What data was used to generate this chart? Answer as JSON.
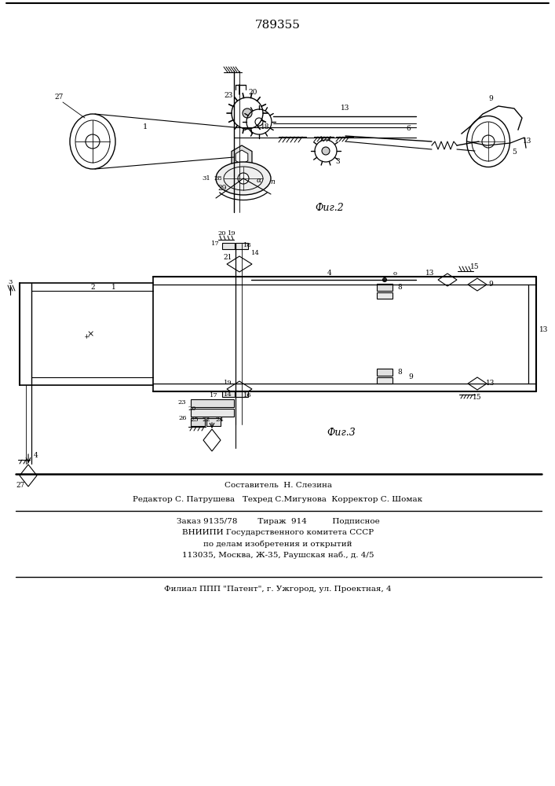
{
  "patent_number": "789355",
  "fig2_label": "Фиг.2",
  "fig3_label": "Фиг.3",
  "footer_line1": "Составитель  Н. Слезина",
  "footer_line2": "Редактор С. Патрушева   Техред С.Мигунова  Корректор С. Шомак",
  "footer_line3": "Заказ 9135/78        Тираж  914          Подписное",
  "footer_line4": "ВНИИПИ Государственного комитета СССР",
  "footer_line5": "по делам изобретения и открытий",
  "footer_line6": "113035, Москва, Ж-35, Раушская наб., д. 4/5",
  "footer_line7": "Филиал ППП \"Патент\", г. Ужгород, ул. Проектная, 4",
  "bg_color": "#ffffff",
  "line_color": "#000000"
}
